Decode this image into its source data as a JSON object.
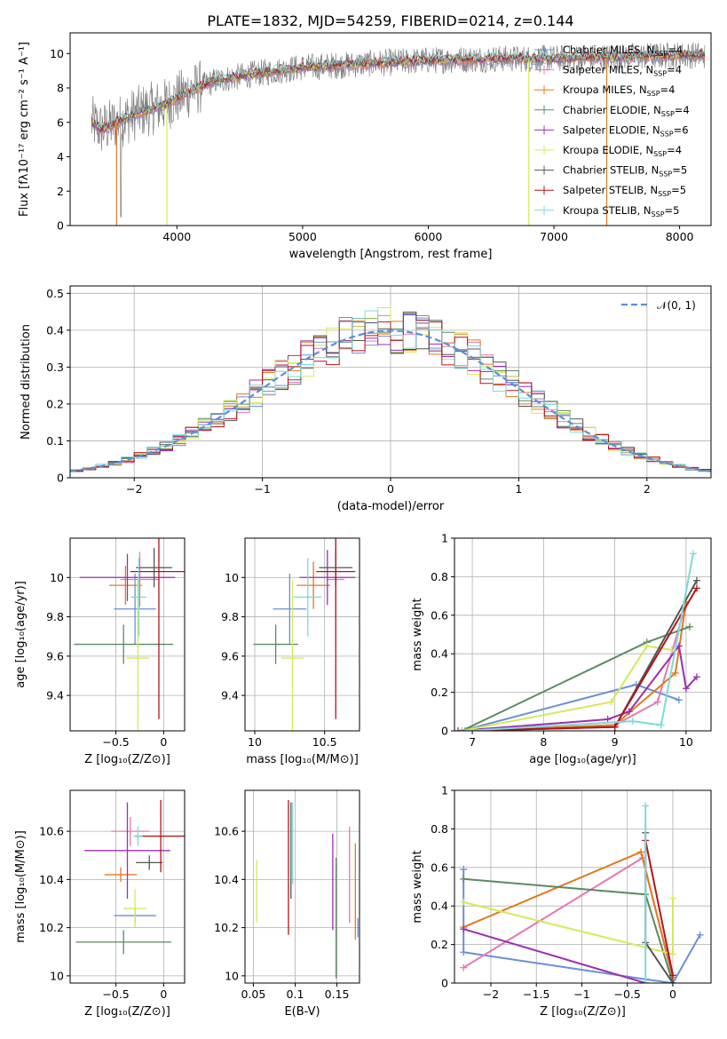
{
  "figure_title": "PLATE=1832, MJD=54259, FIBERID=0214, z=0.144",
  "models": [
    {
      "name": "Chabrier MILES",
      "nssp": "4",
      "color": "#6a8fd8"
    },
    {
      "name": "Salpeter MILES",
      "nssp": "4",
      "color": "#e07ab3"
    },
    {
      "name": "Kroupa MILES",
      "nssp": "4",
      "color": "#e07b1f"
    },
    {
      "name": "Chabrier ELODIE",
      "nssp": "4",
      "color": "#5b8a62"
    },
    {
      "name": "Salpeter ELODIE",
      "nssp": "6",
      "color": "#9b2fb0"
    },
    {
      "name": "Kroupa ELODIE",
      "nssp": "4",
      "color": "#d6e85a"
    },
    {
      "name": "Chabrier STELIB",
      "nssp": "5",
      "color": "#555555"
    },
    {
      "name": "Salpeter STELIB",
      "nssp": "5",
      "color": "#b3141b"
    },
    {
      "name": "Kroupa STELIB",
      "nssp": "5",
      "color": "#7fd8d8"
    }
  ],
  "chart_data": [
    {
      "id": "spectrum",
      "type": "line",
      "xlabel": "wavelength [Angstrom, rest frame]",
      "ylabel": "Flux [fλ10⁻¹⁷ erg cm⁻² s⁻¹ A⁻¹]",
      "xlim": [
        3150,
        8250
      ],
      "ylim": [
        0,
        11.2
      ],
      "xticks": [
        4000,
        5000,
        6000,
        7000,
        8000
      ],
      "yticks": [
        0,
        2,
        4,
        6,
        8,
        10
      ],
      "grid": false,
      "legend": "top-right",
      "continuum": {
        "x": [
          3320,
          3400,
          3500,
          3700,
          3900,
          4100,
          4300,
          4600,
          5000,
          5500,
          6000,
          6500,
          7000,
          7500,
          8000,
          8200
        ],
        "y": [
          6.0,
          5.6,
          5.9,
          6.6,
          7.0,
          7.8,
          8.4,
          8.8,
          9.2,
          9.4,
          9.6,
          9.7,
          9.7,
          9.8,
          9.9,
          9.9
        ]
      },
      "dropouts": [
        {
          "x": 3520,
          "model": "Kroupa MILES"
        },
        {
          "x": 3920,
          "model": "Kroupa ELODIE"
        },
        {
          "x": 6800,
          "model": "Kroupa ELODIE"
        },
        {
          "x": 7420,
          "model": "Kroupa MILES"
        }
      ]
    },
    {
      "id": "residuals",
      "type": "bar",
      "xlabel": "(data-model)/error",
      "ylabel": "Normed distribution",
      "xlim": [
        -2.5,
        2.5
      ],
      "ylim": [
        0,
        0.52
      ],
      "xticks": [
        -2,
        -1,
        0,
        1,
        2
      ],
      "yticks": [
        0.0,
        0.1,
        0.2,
        0.3,
        0.4,
        0.5
      ],
      "grid": true,
      "legend": "top-right",
      "gaussian_label": "𝒩(0, 1)",
      "bin_width": 0.1
    },
    {
      "id": "age-vs-z",
      "type": "scatter",
      "xlabel": "Z [log₁₀(Z/Z⊙)]",
      "ylabel": "age  [log₁₀(age/yr)]",
      "xlim": [
        -0.98,
        0.22
      ],
      "ylim": [
        9.22,
        10.2
      ],
      "xticks": [
        -0.5,
        0.0
      ],
      "yticks": [
        9.4,
        9.6,
        9.8,
        10.0
      ],
      "grid": true,
      "points": [
        {
          "model": "Chabrier MILES",
          "x": -0.3,
          "y": 9.84,
          "xerr": 0.22,
          "yerr": 0.18
        },
        {
          "model": "Salpeter MILES",
          "x": -0.25,
          "y": 9.99,
          "xerr": 0.2,
          "yerr": 0.14
        },
        {
          "model": "Kroupa MILES",
          "x": -0.4,
          "y": 9.96,
          "xerr": 0.17,
          "yerr": 0.1
        },
        {
          "model": "Chabrier ELODIE",
          "x": -0.42,
          "y": 9.66,
          "xerr": 0.52,
          "yerr": 0.1
        },
        {
          "model": "Salpeter ELODIE",
          "x": -0.38,
          "y": 10.0,
          "xerr": 0.5,
          "yerr": 0.12
        },
        {
          "model": "Kroupa ELODIE",
          "x": -0.27,
          "y": 9.59,
          "xerr": 0.12,
          "yerr": 0.4
        },
        {
          "model": "Chabrier STELIB",
          "x": -0.1,
          "y": 10.05,
          "xerr": 0.19,
          "yerr": 0.1
        },
        {
          "model": "Salpeter STELIB",
          "x": -0.05,
          "y": 10.03,
          "xerr": 0.3,
          "yerr": 0.75
        },
        {
          "model": "Kroupa STELIB",
          "x": -0.26,
          "y": 9.9,
          "xerr": 0.08,
          "yerr": 0.2
        }
      ]
    },
    {
      "id": "age-vs-mass",
      "type": "scatter",
      "xlabel": "mass [log₁₀(M/M⊙)]",
      "ylabel": "",
      "xlim": [
        9.93,
        10.75
      ],
      "ylim": [
        9.22,
        10.2
      ],
      "xticks": [
        10.0,
        10.5
      ],
      "yticks": [
        9.4,
        9.6,
        9.8,
        10.0
      ],
      "grid": true,
      "points": [
        {
          "model": "Chabrier MILES",
          "x": 10.25,
          "y": 9.84,
          "xerr": 0.12,
          "yerr": 0.18
        },
        {
          "model": "Salpeter MILES",
          "x": 10.58,
          "y": 9.99,
          "xerr": 0.06,
          "yerr": 0.2
        },
        {
          "model": "Kroupa MILES",
          "x": 10.42,
          "y": 9.96,
          "xerr": 0.12,
          "yerr": 0.12
        },
        {
          "model": "Chabrier ELODIE",
          "x": 10.15,
          "y": 9.66,
          "xerr": 0.16,
          "yerr": 0.1
        },
        {
          "model": "Salpeter ELODIE",
          "x": 10.52,
          "y": 10.0,
          "xerr": 0.2,
          "yerr": 0.14
        },
        {
          "model": "Kroupa ELODIE",
          "x": 10.27,
          "y": 9.59,
          "xerr": 0.08,
          "yerr": 0.4
        },
        {
          "model": "Chabrier STELIB",
          "x": 10.58,
          "y": 10.05,
          "xerr": 0.12,
          "yerr": 0.1
        },
        {
          "model": "Salpeter STELIB",
          "x": 10.58,
          "y": 10.03,
          "xerr": 0.14,
          "yerr": 0.75
        },
        {
          "model": "Kroupa STELIB",
          "x": 10.38,
          "y": 9.9,
          "xerr": 0.1,
          "yerr": 0.2
        }
      ]
    },
    {
      "id": "weight-vs-age",
      "type": "line",
      "xlabel": "age  [log₁₀(age/yr)]",
      "ylabel": "mass weight",
      "xlim": [
        6.75,
        10.35
      ],
      "ylim": [
        0,
        1.0
      ],
      "xticks": [
        7,
        8,
        9,
        10
      ],
      "yticks": [
        0.0,
        0.2,
        0.4,
        0.6,
        0.8,
        1.0
      ],
      "grid": true,
      "series": [
        {
          "model": "Chabrier MILES",
          "x": [
            6.85,
            9.3,
            9.9
          ],
          "y": [
            0.0,
            0.24,
            0.16
          ]
        },
        {
          "model": "Salpeter MILES",
          "x": [
            6.95,
            9.0,
            9.6,
            9.95
          ],
          "y": [
            0.0,
            0.03,
            0.15,
            0.6
          ]
        },
        {
          "model": "Kroupa MILES",
          "x": [
            6.9,
            9.0,
            9.85,
            10.0
          ],
          "y": [
            0.0,
            0.03,
            0.3,
            0.67
          ]
        },
        {
          "model": "Chabrier ELODIE",
          "x": [
            6.85,
            9.45,
            10.05
          ],
          "y": [
            0.0,
            0.46,
            0.54
          ]
        },
        {
          "model": "Salpeter ELODIE",
          "x": [
            6.8,
            8.9,
            9.2,
            9.9,
            10.0,
            10.15
          ],
          "y": [
            0.0,
            0.06,
            0.1,
            0.44,
            0.22,
            0.28
          ]
        },
        {
          "model": "Kroupa ELODIE",
          "x": [
            6.85,
            8.95,
            9.45,
            9.8
          ],
          "y": [
            0.0,
            0.15,
            0.44,
            0.42
          ]
        },
        {
          "model": "Chabrier STELIB",
          "x": [
            6.9,
            9.0,
            10.15
          ],
          "y": [
            0.0,
            0.02,
            0.78
          ]
        },
        {
          "model": "Salpeter STELIB",
          "x": [
            6.9,
            9.0,
            10.15
          ],
          "y": [
            0.0,
            0.02,
            0.74
          ]
        },
        {
          "model": "Kroupa STELIB",
          "x": [
            6.9,
            9.25,
            9.65,
            10.1
          ],
          "y": [
            0.0,
            0.05,
            0.03,
            0.92
          ]
        }
      ]
    },
    {
      "id": "mass-vs-z",
      "type": "scatter",
      "xlabel": "Z [log₁₀(Z/Z⊙)]",
      "ylabel": "mass [log₁₀(M/M⊙)]",
      "xlim": [
        -0.98,
        0.22
      ],
      "ylim": [
        9.97,
        10.77
      ],
      "xticks": [
        -0.5,
        0.0
      ],
      "yticks": [
        10.0,
        10.2,
        10.4,
        10.6
      ],
      "grid": true,
      "points": [
        {
          "model": "Chabrier MILES",
          "x": -0.3,
          "y": 10.25,
          "xerr": 0.22,
          "yerr": 0.03
        },
        {
          "model": "Salpeter MILES",
          "x": -0.35,
          "y": 10.6,
          "xerr": 0.2,
          "yerr": 0.06
        },
        {
          "model": "Kroupa MILES",
          "x": -0.45,
          "y": 10.42,
          "xerr": 0.17,
          "yerr": 0.03
        },
        {
          "model": "Chabrier ELODIE",
          "x": -0.42,
          "y": 10.14,
          "xerr": 0.5,
          "yerr": 0.05
        },
        {
          "model": "Salpeter ELODIE",
          "x": -0.38,
          "y": 10.52,
          "xerr": 0.45,
          "yerr": 0.2
        },
        {
          "model": "Kroupa ELODIE",
          "x": -0.3,
          "y": 10.28,
          "xerr": 0.12,
          "yerr": 0.08
        },
        {
          "model": "Chabrier STELIB",
          "x": -0.15,
          "y": 10.47,
          "xerr": 0.14,
          "yerr": 0.03
        },
        {
          "model": "Salpeter STELIB",
          "x": -0.03,
          "y": 10.58,
          "xerr": 0.27,
          "yerr": 0.15
        },
        {
          "model": "Kroupa STELIB",
          "x": -0.27,
          "y": 10.58,
          "xerr": 0.05,
          "yerr": 0.04
        }
      ]
    },
    {
      "id": "mass-vs-ebv",
      "type": "scatter",
      "xlabel": "E(B-V)",
      "ylabel": "",
      "xlim": [
        0.04,
        0.177
      ],
      "ylim": [
        9.97,
        10.77
      ],
      "xticks": [
        0.05,
        0.1,
        0.15
      ],
      "yticks": [
        10.0,
        10.2,
        10.4,
        10.6
      ],
      "grid": true,
      "points": [
        {
          "model": "Chabrier MILES",
          "x": 0.175,
          "y": 10.2,
          "yerr": 0.04
        },
        {
          "model": "Salpeter MILES",
          "x": 0.165,
          "y": 10.42,
          "yerr": 0.2
        },
        {
          "model": "Kroupa MILES",
          "x": 0.172,
          "y": 10.35,
          "yerr": 0.2
        },
        {
          "model": "Chabrier ELODIE",
          "x": 0.149,
          "y": 10.24,
          "yerr": 0.25
        },
        {
          "model": "Salpeter ELODIE",
          "x": 0.145,
          "y": 10.39,
          "yerr": 0.2
        },
        {
          "model": "Kroupa ELODIE",
          "x": 0.054,
          "y": 10.35,
          "yerr": 0.13
        },
        {
          "model": "Chabrier STELIB",
          "x": 0.095,
          "y": 10.52,
          "yerr": 0.2
        },
        {
          "model": "Salpeter STELIB",
          "x": 0.092,
          "y": 10.45,
          "yerr": 0.28
        },
        {
          "model": "Kroupa STELIB",
          "x": 0.097,
          "y": 10.55,
          "yerr": 0.17
        }
      ]
    },
    {
      "id": "weight-vs-z",
      "type": "line",
      "xlabel": "Z [log₁₀(Z/Z⊙)]",
      "ylabel": "mass weight",
      "xlim": [
        -2.4,
        0.42
      ],
      "ylim": [
        0,
        1.0
      ],
      "xticks": [
        -2.0,
        -1.5,
        -1.0,
        -0.5,
        0.0
      ],
      "yticks": [
        0.0,
        0.2,
        0.4,
        0.6,
        0.8,
        1.0
      ],
      "grid": true,
      "series": [
        {
          "model": "Chabrier MILES",
          "x": [
            -2.3,
            -2.3,
            -0.3,
            0.0,
            0.3
          ],
          "y": [
            0.59,
            0.16,
            0.02,
            0.0,
            0.25
          ]
        },
        {
          "model": "Salpeter MILES",
          "x": [
            -2.3,
            -0.33,
            0.0
          ],
          "y": [
            0.08,
            0.65,
            0.02
          ]
        },
        {
          "model": "Kroupa MILES",
          "x": [
            -2.3,
            -0.35,
            0.0
          ],
          "y": [
            0.29,
            0.68,
            0.03
          ]
        },
        {
          "model": "Chabrier ELODIE",
          "x": [
            -2.3,
            -0.3,
            0.0
          ],
          "y": [
            0.54,
            0.46,
            0.0
          ]
        },
        {
          "model": "Salpeter ELODIE",
          "x": [
            -2.3,
            -0.3
          ],
          "y": [
            0.28,
            0.0
          ]
        },
        {
          "model": "Kroupa ELODIE",
          "x": [
            -2.3,
            0.0,
            0.0
          ],
          "y": [
            0.42,
            0.15,
            0.44
          ]
        },
        {
          "model": "Chabrier STELIB",
          "x": [
            -0.3,
            -0.3,
            0.0
          ],
          "y": [
            0.78,
            0.21,
            0.0
          ]
        },
        {
          "model": "Salpeter STELIB",
          "x": [
            -0.3,
            0.0
          ],
          "y": [
            0.74,
            0.04
          ]
        },
        {
          "model": "Kroupa STELIB",
          "x": [
            -0.3,
            -0.3
          ],
          "y": [
            0.92,
            0.0
          ]
        }
      ]
    }
  ]
}
